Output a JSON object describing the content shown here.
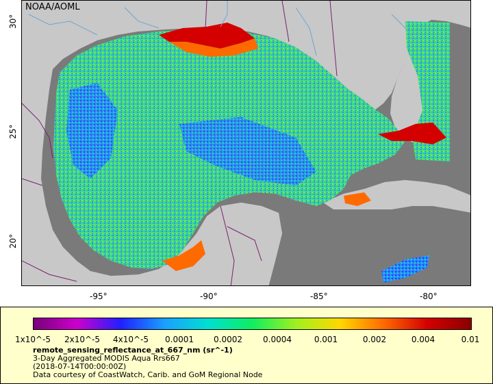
{
  "map": {
    "agency_label": "NOAA/AOML",
    "lon_ticks": [
      "-95°",
      "-90°",
      "-85°",
      "-80°"
    ],
    "lat_ticks": [
      "30°",
      "25°",
      "20°"
    ],
    "land_color": "#c8c8c8",
    "nodata_color": "#7a7a7a",
    "border_color": "#7a1f6e",
    "river_color": "#6aa6d6"
  },
  "legend": {
    "ticks": [
      "1x10^-5",
      "2x10^-5",
      "4x10^-5",
      "0.0001",
      "0.0002",
      "0.0004",
      "0.001",
      "0.002",
      "0.004",
      "0.01"
    ],
    "variable": "remote_sensing_reflectance_at_667_nm (sr^-1)",
    "dataset": "3-Day Aggregated MODIS Aqua Rrs667",
    "time": "(2018-07-14T00:00:00Z)",
    "credit": "Data courtesy of CoastWatch, Carib. and GoM Regional Node",
    "colors": [
      "#7a007a",
      "#cc00cc",
      "#2020ff",
      "#1aa0ff",
      "#00e0d0",
      "#10ee60",
      "#a0f020",
      "#ffd800",
      "#ff6a00",
      "#d40000",
      "#8a0000"
    ]
  }
}
